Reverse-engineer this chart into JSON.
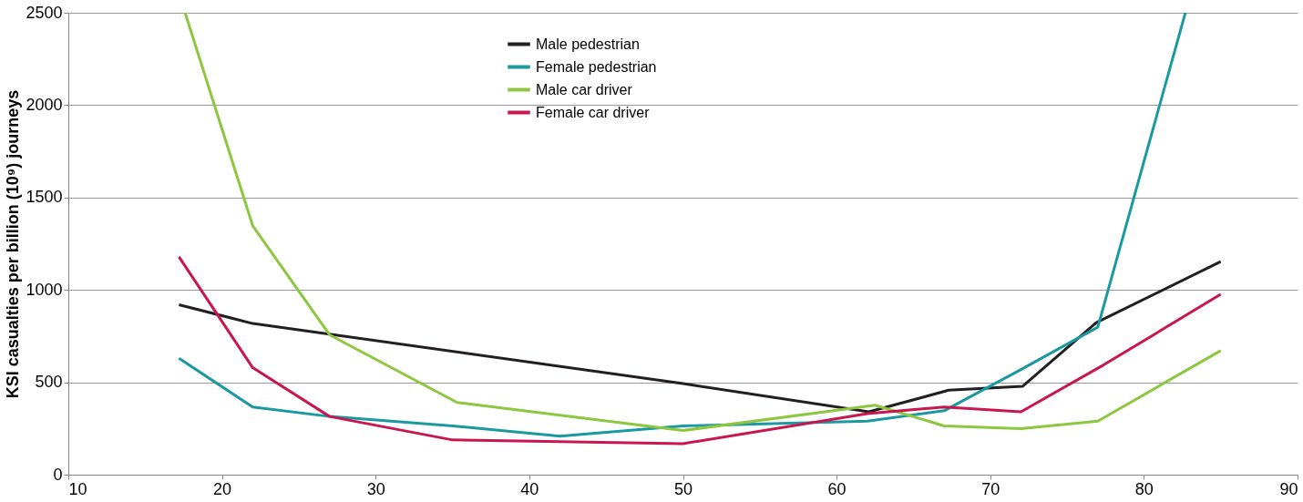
{
  "chart_data": {
    "type": "line",
    "ylabel": "KSI casualties per billion (10⁹) journeys",
    "xlim": [
      10,
      90
    ],
    "xticks": [
      10,
      20,
      30,
      40,
      50,
      60,
      70,
      80,
      90
    ],
    "ylim": [
      0,
      2500
    ],
    "yticks": [
      0,
      500,
      1000,
      1500,
      2000,
      2500
    ],
    "grid": "y",
    "legend": "top",
    "marker": "none",
    "line_style": "solid",
    "series": [
      {
        "name": "Male pedestrian",
        "color": "#231f20",
        "x": [
          17.2,
          22,
          50,
          62.1,
          67.3,
          72.1,
          76.9,
          85
        ],
        "values": [
          920,
          818,
          493,
          340,
          457,
          478,
          823,
          1153
        ]
      },
      {
        "name": "Female pedestrian",
        "color": "#1a9aa0",
        "x": [
          17.2,
          22,
          27,
          35,
          42,
          50,
          62,
          67,
          72,
          77,
          82.7
        ],
        "values": [
          630,
          366,
          315,
          264,
          208,
          264,
          290,
          346,
          569,
          798,
          2500
        ]
      },
      {
        "name": "Male car driver",
        "color": "#8dc63f",
        "x": [
          17.6,
          22,
          27,
          35.3,
          50,
          62.5,
          67,
          72,
          77,
          85
        ],
        "values": [
          2500,
          1347,
          757,
          391,
          239,
          376,
          264,
          249,
          290,
          671
        ]
      },
      {
        "name": "Female car driver",
        "color": "#c8174f",
        "x": [
          17.2,
          22,
          27,
          35,
          50,
          62,
          67,
          72,
          77.4,
          85
        ],
        "values": [
          1179,
          579,
          315,
          188,
          168,
          330,
          366,
          340,
          595,
          976
        ]
      }
    ]
  }
}
